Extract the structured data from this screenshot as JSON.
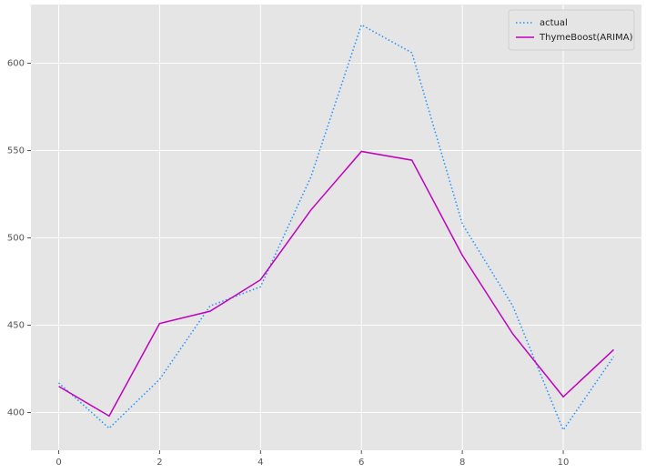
{
  "chart_data": {
    "type": "line",
    "x": [
      0,
      1,
      2,
      3,
      4,
      5,
      6,
      7,
      8,
      9,
      10,
      11
    ],
    "series": [
      {
        "name": "actual",
        "color": "#1e90ff",
        "dash": "dotted",
        "values": [
          417,
          391,
          419,
          461,
          472,
          535,
          622,
          606,
          508,
          461,
          390,
          432
        ]
      },
      {
        "name": "ThymeBoost(ARIMA)",
        "color": "#bf00bf",
        "dash": "solid",
        "values": [
          415,
          398,
          451,
          458,
          476,
          516,
          549.5,
          544.5,
          490,
          445,
          409,
          436
        ]
      }
    ],
    "xlim": [
      -0.55,
      11.55
    ],
    "xticks": [
      0,
      2,
      4,
      6,
      8,
      10
    ],
    "ylim": [
      378.4,
      633.6
    ],
    "yticks": [
      400,
      450,
      500,
      550,
      600
    ],
    "grid": true,
    "legend": "upper right"
  }
}
